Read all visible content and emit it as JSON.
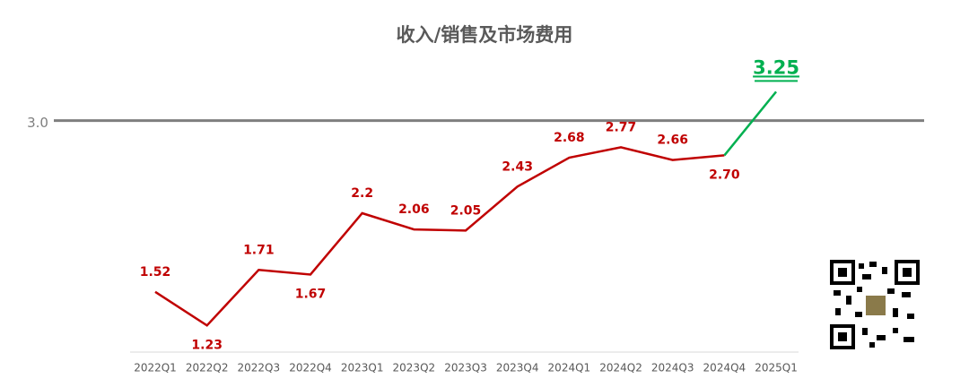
{
  "chart_data": {
    "type": "line",
    "title": "收入/销售及市场费用",
    "categories": [
      "2022Q1",
      "2022Q2",
      "2022Q3",
      "2022Q4",
      "2023Q1",
      "2023Q2",
      "2023Q3",
      "2023Q4",
      "2024Q1",
      "2024Q2",
      "2024Q3",
      "2024Q4",
      "2025Q1"
    ],
    "series": [
      {
        "color": "#c00000",
        "last_color": "#00b050",
        "values": [
          1.52,
          1.23,
          1.71,
          1.67,
          2.2,
          2.06,
          2.05,
          2.43,
          2.68,
          2.77,
          2.66,
          2.7,
          3.25
        ],
        "value_labels": [
          "1.52",
          "1.23",
          "1.71",
          "1.67",
          "2.2",
          "2.06",
          "2.05",
          "2.43",
          "2.68",
          "2.77",
          "2.66",
          "2.70",
          "3.25"
        ]
      }
    ],
    "ylim": [
      1.0,
      3.4
    ],
    "yticks": [
      {
        "value": 3,
        "label": "3.0"
      }
    ]
  }
}
